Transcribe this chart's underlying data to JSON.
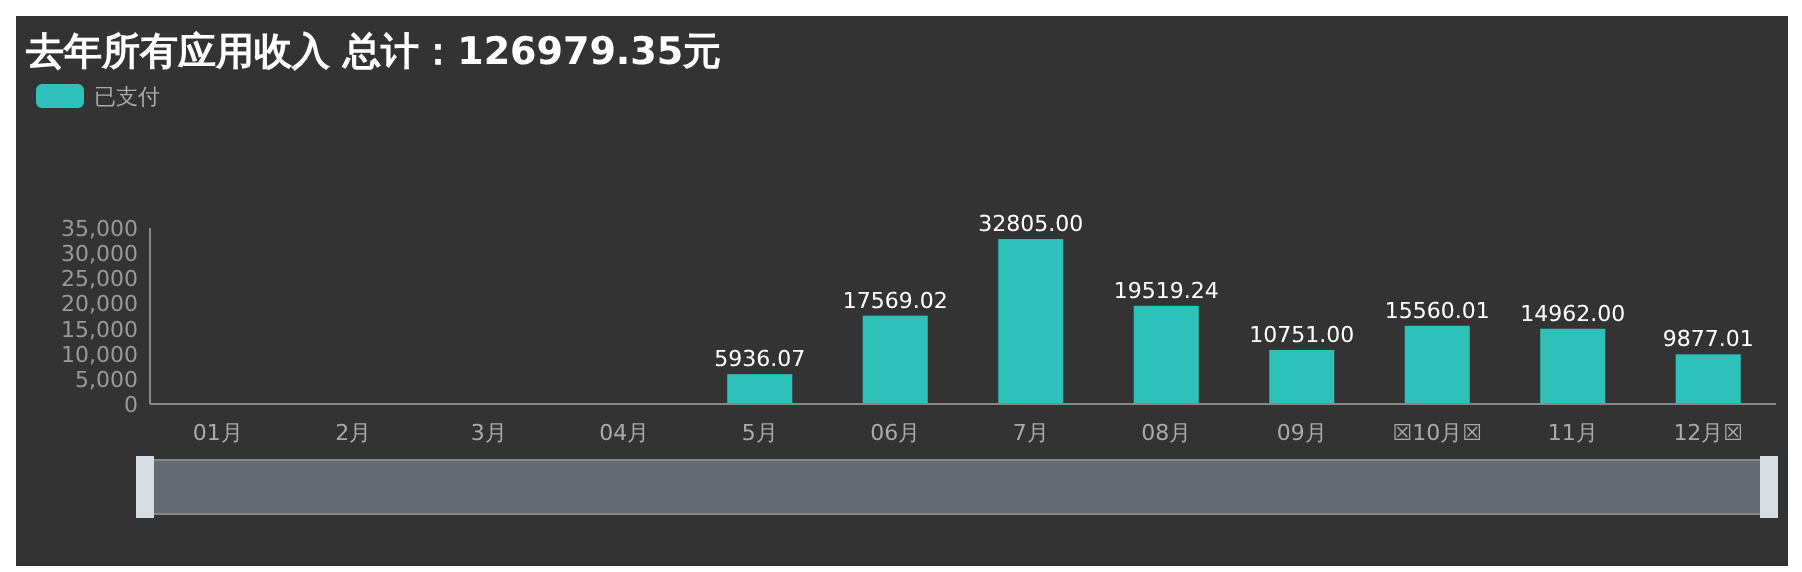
{
  "chart_data": {
    "type": "bar",
    "title": "去年所有应用收入 总计：126979.35元",
    "categories": [
      "01月",
      "2月",
      "3月",
      "04月",
      "5月",
      "06月",
      "7月",
      "08月",
      "09月",
      "☒10月☒",
      "11月",
      "12月☒"
    ],
    "series": [
      {
        "name": "已支付",
        "color": "#2ec1b9",
        "values": [
          0,
          0,
          0,
          0,
          5936.07,
          17569.02,
          32805.0,
          19519.24,
          10751.0,
          15560.01,
          14962.0,
          9877.01
        ],
        "value_labels": [
          null,
          null,
          null,
          null,
          "5936.07",
          "17569.02",
          "32805.00",
          "19519.24",
          "10751.00",
          "15560.01",
          "14962.00",
          "9877.01"
        ]
      }
    ],
    "ylim": [
      0,
      35000
    ],
    "yticks": [
      {
        "value": 0,
        "label": "0"
      },
      {
        "value": 5000,
        "label": "5,000"
      },
      {
        "value": 10000,
        "label": "10,000"
      },
      {
        "value": 15000,
        "label": "15,000"
      },
      {
        "value": 20000,
        "label": "20,000"
      },
      {
        "value": 25000,
        "label": "25,000"
      },
      {
        "value": 30000,
        "label": "30,000"
      },
      {
        "value": 35000,
        "label": "35,000"
      }
    ],
    "legend": "top left",
    "grid": false
  }
}
